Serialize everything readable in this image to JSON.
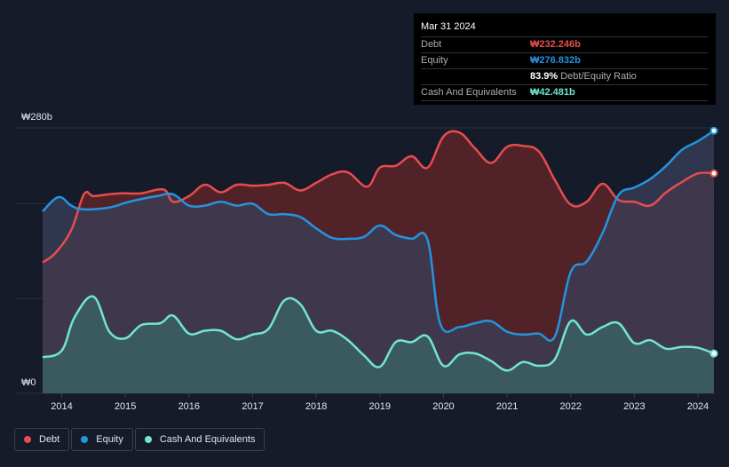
{
  "tooltip": {
    "date": "Mar 31 2024",
    "debt_label": "Debt",
    "debt_value": "₩232.246b",
    "equity_label": "Equity",
    "equity_value": "₩276.832b",
    "ratio_value": "83.9%",
    "ratio_label": "Debt/Equity Ratio",
    "cash_label": "Cash And Equivalents",
    "cash_value": "₩42.481b"
  },
  "legend": {
    "debt": "Debt",
    "equity": "Equity",
    "cash": "Cash And Equivalents"
  },
  "colors": {
    "background": "#151b28",
    "debt": "#e84c4f",
    "equity": "#2394df",
    "cash": "#72e5d1",
    "debt_fill": "#5c2428",
    "equity_fill": "#3a4059",
    "cash_fill": "#3a6565"
  },
  "chart_data": {
    "type": "area",
    "x_unit": "year",
    "y_unit": "KRW billions",
    "ylim": [
      0,
      280
    ],
    "xlim": [
      2013.7,
      2024.25
    ],
    "y_tick_labels": [
      {
        "value": 280,
        "label": "₩280b"
      },
      {
        "value": 0,
        "label": "₩0"
      }
    ],
    "x_tick_labels": [
      "2014",
      "2015",
      "2016",
      "2017",
      "2018",
      "2019",
      "2020",
      "2021",
      "2022",
      "2023",
      "2024"
    ],
    "series": [
      {
        "name": "Debt",
        "color": "#e84c4f",
        "x": [
          2013.7,
          2013.9,
          2014.15,
          2014.35,
          2014.5,
          2014.75,
          2014.95,
          2015.25,
          2015.6,
          2015.75,
          2016.0,
          2016.25,
          2016.5,
          2016.75,
          2017.0,
          2017.25,
          2017.5,
          2017.75,
          2018.0,
          2018.25,
          2018.5,
          2018.8,
          2019.0,
          2019.25,
          2019.5,
          2019.75,
          2020.0,
          2020.25,
          2020.5,
          2020.75,
          2021.0,
          2021.25,
          2021.5,
          2021.75,
          2022.0,
          2022.25,
          2022.5,
          2022.75,
          2023.0,
          2023.25,
          2023.5,
          2023.75,
          2024.0,
          2024.25
        ],
        "values": [
          138,
          148,
          172,
          210,
          208,
          210,
          211,
          211,
          215,
          202,
          208,
          220,
          212,
          220,
          219,
          220,
          222,
          214,
          222,
          231,
          233,
          218,
          238,
          240,
          250,
          238,
          271,
          275,
          258,
          243,
          260,
          261,
          255,
          225,
          199,
          202,
          221,
          204,
          202,
          198,
          212,
          223,
          232,
          232
        ]
      },
      {
        "name": "Equity",
        "color": "#2394df",
        "x": [
          2013.7,
          2013.95,
          2014.15,
          2014.35,
          2014.75,
          2015.0,
          2015.25,
          2015.5,
          2015.75,
          2016.0,
          2016.25,
          2016.5,
          2016.75,
          2017.0,
          2017.25,
          2017.5,
          2017.75,
          2018.0,
          2018.25,
          2018.5,
          2018.75,
          2019.0,
          2019.25,
          2019.5,
          2019.75,
          2019.95,
          2020.25,
          2020.5,
          2020.75,
          2021.0,
          2021.25,
          2021.5,
          2021.75,
          2022.0,
          2022.25,
          2022.5,
          2022.75,
          2023.0,
          2023.25,
          2023.5,
          2023.75,
          2024.0,
          2024.25
        ],
        "values": [
          192,
          207,
          198,
          194,
          196,
          201,
          205,
          208,
          210,
          198,
          198,
          202,
          198,
          200,
          189,
          189,
          186,
          174,
          164,
          163,
          165,
          177,
          167,
          163,
          162,
          73,
          70,
          74,
          76,
          65,
          62,
          63,
          60,
          128,
          139,
          169,
          209,
          217,
          226,
          240,
          257,
          266,
          277
        ]
      },
      {
        "name": "Cash And Equivalents",
        "color": "#72e5d1",
        "x": [
          2013.7,
          2014.0,
          2014.2,
          2014.5,
          2014.75,
          2015.0,
          2015.25,
          2015.55,
          2015.75,
          2016.0,
          2016.25,
          2016.5,
          2016.75,
          2017.0,
          2017.25,
          2017.5,
          2017.75,
          2018.0,
          2018.25,
          2018.5,
          2018.75,
          2019.0,
          2019.25,
          2019.5,
          2019.75,
          2020.0,
          2020.25,
          2020.5,
          2020.75,
          2021.0,
          2021.25,
          2021.5,
          2021.75,
          2022.0,
          2022.25,
          2022.5,
          2022.75,
          2023.0,
          2023.25,
          2023.5,
          2023.75,
          2024.0,
          2024.25
        ],
        "values": [
          38,
          45,
          80,
          102,
          65,
          58,
          72,
          74,
          82,
          63,
          66,
          66,
          57,
          62,
          68,
          98,
          94,
          66,
          66,
          56,
          40,
          28,
          54,
          54,
          60,
          29,
          41,
          42,
          34,
          24,
          33,
          29,
          36,
          76,
          62,
          70,
          74,
          53,
          56,
          47,
          49,
          48,
          42
        ]
      }
    ]
  }
}
